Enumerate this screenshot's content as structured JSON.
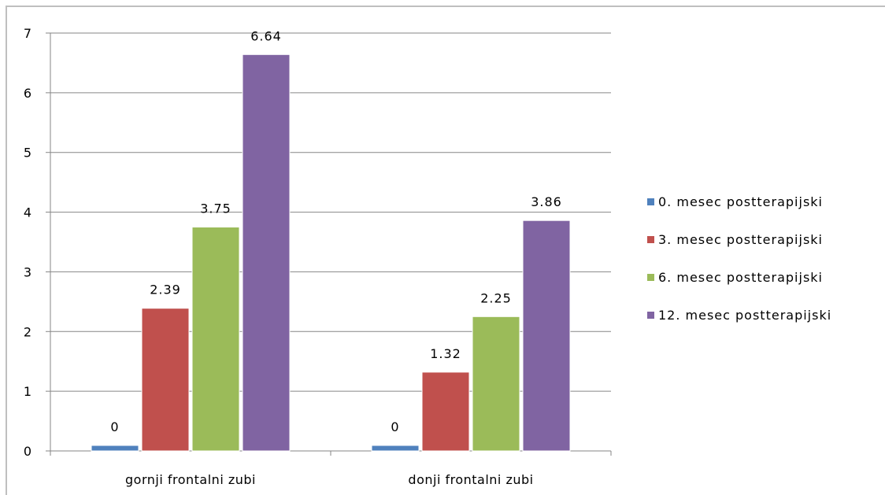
{
  "chart_data": {
    "type": "bar",
    "categories": [
      "gornji frontalni zubi",
      "donji frontalni zubi"
    ],
    "series": [
      {
        "name": "0. mesec postterapijski",
        "values": [
          0,
          0
        ],
        "color": "#4f81bd"
      },
      {
        "name": "3. mesec postterapijski",
        "values": [
          2.39,
          1.32
        ],
        "color": "#c0504d"
      },
      {
        "name": "6. mesec postterapijski",
        "values": [
          3.75,
          2.25
        ],
        "color": "#9bbb59"
      },
      {
        "name": "12. mesec postterapijski",
        "values": [
          6.64,
          3.86
        ],
        "color": "#8064a2"
      }
    ],
    "ylim": [
      0,
      7
    ],
    "yticks": [
      0,
      1,
      2,
      3,
      4,
      5,
      6,
      7
    ],
    "grid": true,
    "legend_position": "right"
  }
}
